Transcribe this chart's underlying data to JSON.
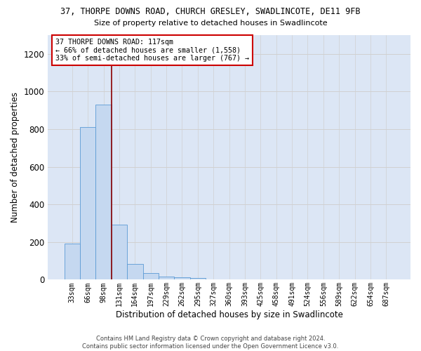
{
  "title": "37, THORPE DOWNS ROAD, CHURCH GRESLEY, SWADLINCOTE, DE11 9FB",
  "subtitle": "Size of property relative to detached houses in Swadlincote",
  "xlabel": "Distribution of detached houses by size in Swadlincote",
  "ylabel": "Number of detached properties",
  "bar_values": [
    193,
    810,
    929,
    293,
    85,
    35,
    18,
    13,
    9,
    0,
    0,
    0,
    0,
    0,
    0,
    0,
    0,
    0,
    0,
    0,
    0
  ],
  "bar_labels": [
    "33sqm",
    "66sqm",
    "98sqm",
    "131sqm",
    "164sqm",
    "197sqm",
    "229sqm",
    "262sqm",
    "295sqm",
    "327sqm",
    "360sqm",
    "393sqm",
    "425sqm",
    "458sqm",
    "491sqm",
    "524sqm",
    "556sqm",
    "589sqm",
    "622sqm",
    "654sqm",
    "687sqm"
  ],
  "bar_color": "#c5d8f0",
  "bar_edge_color": "#5b9bd5",
  "grid_color": "#d0d0d0",
  "bg_color": "#dce6f5",
  "vline_color": "#8b0000",
  "vline_position": 2.5,
  "annotation_text_line1": "37 THORPE DOWNS ROAD: 117sqm",
  "annotation_text_line2": "← 66% of detached houses are smaller (1,558)",
  "annotation_text_line3": "33% of semi-detached houses are larger (767) →",
  "ylim": [
    0,
    1300
  ],
  "yticks": [
    0,
    200,
    400,
    600,
    800,
    1000,
    1200
  ],
  "footer_line1": "Contains HM Land Registry data © Crown copyright and database right 2024.",
  "footer_line2": "Contains public sector information licensed under the Open Government Licence v3.0."
}
